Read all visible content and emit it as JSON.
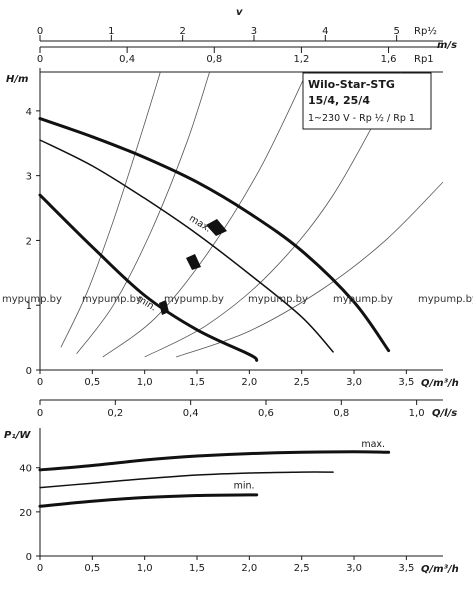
{
  "title_box": {
    "line1": "Wilo-Star-STG",
    "line2": "15/4, 25/4",
    "line3": "1~230 V - Rp ½ / Rp 1"
  },
  "watermarks": [
    "mypump.by",
    "mypump.by",
    "mypump.by",
    "mypump.by",
    "mypump.by",
    "mypump.by"
  ],
  "chart_data": [
    {
      "type": "line",
      "name": "pump-curves",
      "xlabel": "Q/m³/h",
      "ylabel": "H/m",
      "xlim": [
        0,
        3.85
      ],
      "ylim": [
        0,
        4.6
      ],
      "xticks": [
        0,
        0.5,
        1,
        1.5,
        2,
        2.5,
        3,
        3.5
      ],
      "xtick_labels": [
        "0",
        "0,5",
        "1,0",
        "1,5",
        "2,0",
        "2,5",
        "3,0",
        "3,5"
      ],
      "yticks": [
        0,
        1,
        2,
        3,
        4
      ],
      "ytick_labels": [
        "0",
        "1",
        "2",
        "3",
        "4"
      ],
      "top_axes": [
        {
          "label": "v",
          "sublabel": "Rp½",
          "range": [
            0,
            5.65
          ],
          "ticks": [
            0,
            1,
            2,
            3,
            4,
            5
          ],
          "tick_labels": [
            "0",
            "1",
            "2",
            "3",
            "4",
            "5"
          ]
        },
        {
          "label": "m/s",
          "sublabel": "Rp1",
          "range": [
            0,
            1.85
          ],
          "ticks": [
            0,
            0.4,
            0.8,
            1.2,
            1.6
          ],
          "tick_labels": [
            "0",
            "0,4",
            "0,8",
            "1,2",
            "1,6"
          ]
        }
      ],
      "series": [
        {
          "name": "max.",
          "weight": "thick",
          "x": [
            0,
            0.5,
            1.0,
            1.5,
            2.0,
            2.5,
            3.0,
            3.33
          ],
          "y": [
            3.88,
            3.6,
            3.28,
            2.9,
            2.42,
            1.84,
            1.05,
            0.3
          ]
        },
        {
          "name": "",
          "weight": "thin",
          "x": [
            0,
            0.5,
            1.0,
            1.5,
            2.0,
            2.5,
            2.8
          ],
          "y": [
            3.55,
            3.15,
            2.65,
            2.1,
            1.48,
            0.82,
            0.28
          ]
        },
        {
          "name": "min.",
          "weight": "thick",
          "x": [
            0,
            0.5,
            1.0,
            1.5,
            2.0,
            2.07
          ],
          "y": [
            2.7,
            1.9,
            1.15,
            0.62,
            0.24,
            0.15
          ]
        }
      ],
      "system_curves": [
        {
          "x": [
            0.2,
            0.45,
            0.7,
            0.95,
            1.15
          ],
          "y": [
            0.35,
            1.2,
            2.3,
            3.55,
            4.6
          ]
        },
        {
          "x": [
            0.35,
            0.7,
            1.05,
            1.4,
            1.62
          ],
          "y": [
            0.25,
            1.0,
            2.1,
            3.5,
            4.6
          ]
        },
        {
          "x": [
            0.6,
            1.1,
            1.6,
            2.1,
            2.55
          ],
          "y": [
            0.2,
            0.8,
            1.8,
            3.1,
            4.6
          ]
        },
        {
          "x": [
            1.0,
            1.6,
            2.2,
            2.8,
            3.45
          ],
          "y": [
            0.2,
            0.7,
            1.5,
            2.7,
            4.6
          ]
        },
        {
          "x": [
            1.3,
            2.0,
            2.7,
            3.3,
            3.85
          ],
          "y": [
            0.2,
            0.6,
            1.25,
            2.0,
            2.9
          ]
        }
      ],
      "annotations": [
        {
          "text": "max.",
          "x": 1.42,
          "y": 2.32
        },
        {
          "text": "min.",
          "x": 0.92,
          "y": 1.08
        }
      ]
    },
    {
      "type": "line",
      "name": "power-curves",
      "xlabel": "Q/m³/h",
      "ylabel": "P₁/W",
      "xlim": [
        0,
        3.85
      ],
      "ylim": [
        0,
        58
      ],
      "xticks": [
        0,
        0.5,
        1,
        1.5,
        2,
        2.5,
        3,
        3.5
      ],
      "xtick_labels": [
        "0",
        "0,5",
        "1,0",
        "1,5",
        "2,0",
        "2,5",
        "3,0",
        "3,5"
      ],
      "yticks": [
        0,
        20,
        40
      ],
      "ytick_labels": [
        "0",
        "20",
        "40"
      ],
      "top_axis": {
        "label": "Q/l/s",
        "range": [
          0,
          1.07
        ],
        "ticks": [
          0,
          0.2,
          0.4,
          0.6,
          0.8,
          1.0
        ],
        "tick_labels": [
          "0",
          "0,2",
          "0,4",
          "0,6",
          "0,8",
          "1,0"
        ]
      },
      "series": [
        {
          "name": "max.",
          "weight": "thick",
          "x": [
            0,
            0.5,
            1.0,
            1.5,
            2.0,
            2.5,
            3.0,
            3.33
          ],
          "y": [
            39,
            41,
            43.5,
            45.3,
            46.4,
            47,
            47.2,
            47
          ]
        },
        {
          "name": "",
          "weight": "thin",
          "x": [
            0,
            0.5,
            1.0,
            1.5,
            2.0,
            2.5,
            2.8
          ],
          "y": [
            31,
            33,
            35,
            36.7,
            37.6,
            38,
            38
          ]
        },
        {
          "name": "min.",
          "weight": "thick",
          "x": [
            0,
            0.5,
            1.0,
            1.5,
            2.0,
            2.07
          ],
          "y": [
            22.5,
            24.8,
            26.5,
            27.4,
            27.7,
            27.7
          ]
        }
      ],
      "annotations": [
        {
          "text": "max.",
          "x": 3.07,
          "y": 49.5
        },
        {
          "text": "min.",
          "x": 1.85,
          "y": 30.5
        }
      ]
    }
  ]
}
